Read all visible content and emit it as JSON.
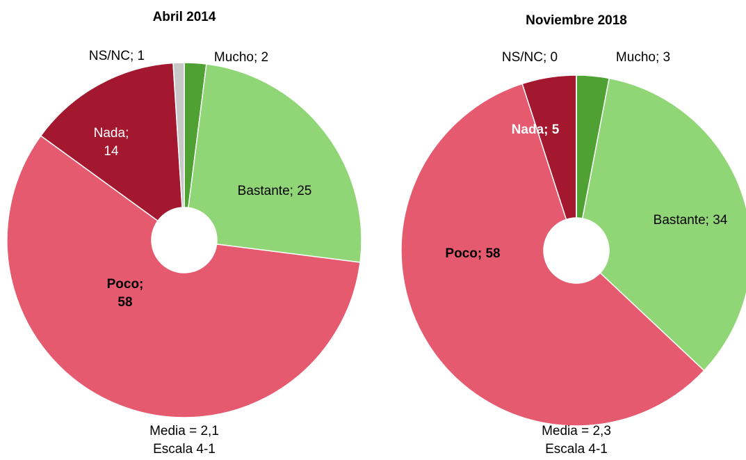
{
  "chart_data": [
    {
      "type": "pie",
      "title": "Abril 2014",
      "categories": [
        "Mucho",
        "Bastante",
        "Poco",
        "Nada",
        "NS/NC"
      ],
      "values": [
        2,
        25,
        58,
        14,
        1
      ],
      "value_labels": [
        "Mucho; 2",
        "Bastante; 25",
        "Poco; 58",
        "Nada; 14",
        "NS/NC; 1"
      ],
      "colors": [
        "#4ea132",
        "#90d676",
        "#e55a6e",
        "#a3182f",
        "#c8c8c8"
      ],
      "notes": [
        "Media = 2,1",
        "Escala 4-1"
      ]
    },
    {
      "type": "pie",
      "title": "Noviembre 2018",
      "categories": [
        "Mucho",
        "Bastante",
        "Poco",
        "Nada",
        "NS/NC"
      ],
      "values": [
        3,
        34,
        58,
        5,
        0
      ],
      "value_labels": [
        "Mucho; 3",
        "Bastante; 34",
        "Poco; 58",
        "Nada; 5",
        "NS/NC; 0"
      ],
      "colors": [
        "#4ea132",
        "#90d676",
        "#e55a6e",
        "#a3182f",
        "#c8c8c8"
      ],
      "notes": [
        "Media = 2,3",
        "Escala 4-1"
      ]
    }
  ]
}
